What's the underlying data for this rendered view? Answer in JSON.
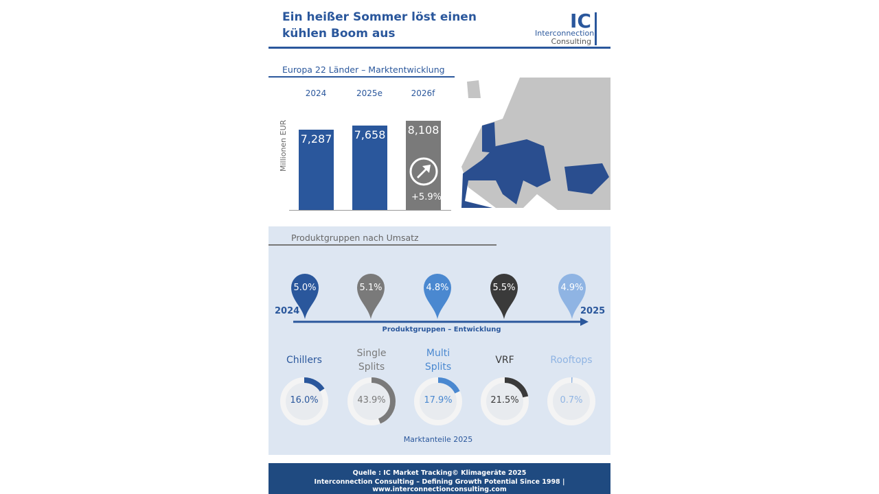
{
  "header": {
    "title": "Ein heißer Sommer löst einen kühlen Boom aus",
    "logo_ic": "IC",
    "logo_line1": "Interconnection",
    "logo_line2": "Consulting"
  },
  "market": {
    "title": "Europa 22 Länder – Marktentwicklung",
    "growth_label": "+5.9%",
    "arrow_icon": "arrow-up-right-icon"
  },
  "products": {
    "title": "Produktgruppen nach Umsatz",
    "start_year": "2024",
    "end_year": "2025",
    "timeline_label": "Produktgruppen – Entwicklung",
    "share_title": "Marktanteile 2025"
  },
  "chart_data": [
    {
      "type": "bar",
      "categories": [
        "2024",
        "2025e",
        "2026f"
      ],
      "values": [
        7287,
        7658,
        8108
      ],
      "value_labels": [
        "7,287",
        "7,658",
        "8,108"
      ],
      "ylabel": "Millionen EUR",
      "colors": [
        "#2a579c",
        "#2a579c",
        "#7a7a7a"
      ]
    },
    {
      "type": "pie",
      "subtype": "donut",
      "title": "Marktanteile 2025",
      "categories": [
        "Chillers",
        "Single Splits",
        "Multi Splits",
        "VRF",
        "Rooftops"
      ],
      "name_lines": [
        [
          "Chillers"
        ],
        [
          "Single",
          "Splits"
        ],
        [
          "Multi",
          "Splits"
        ],
        [
          "VRF"
        ],
        [
          "Rooftops"
        ]
      ],
      "values": [
        16.0,
        43.9,
        17.9,
        21.5,
        0.7
      ],
      "value_labels": [
        "16.0%",
        "43.9%",
        "17.9%",
        "21.5%",
        "0.7%"
      ],
      "growth_labels": [
        "5.0%",
        "5.1%",
        "4.8%",
        "5.5%",
        "4.9%"
      ],
      "colors": [
        "#2a579c",
        "#7a7a7a",
        "#4a88d0",
        "#3a3a3a",
        "#8fb4e3"
      ]
    }
  ],
  "footer": {
    "line1": "Quelle : IC Market Tracking© Klimageräte 2025",
    "line2": "Interconnection Consulting – Defining Growth Potential Since 1998 | www.interconnectionconsulting.com"
  }
}
